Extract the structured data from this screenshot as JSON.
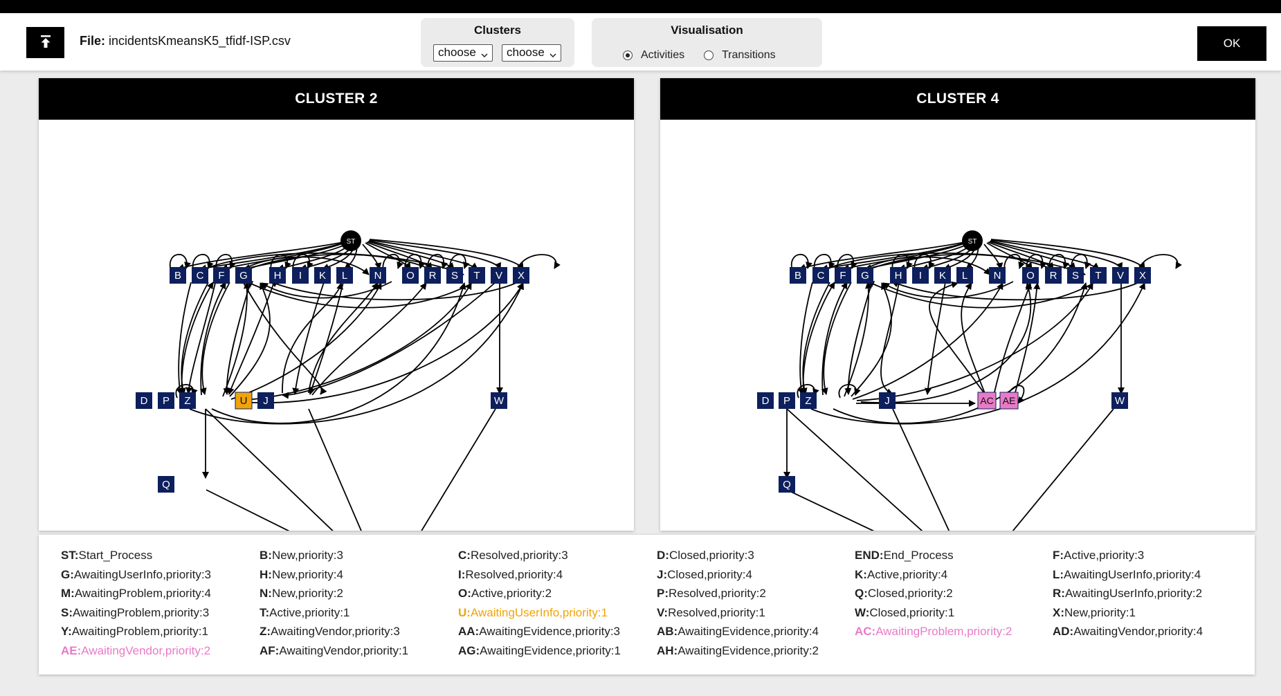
{
  "header": {
    "file_label": "File:",
    "file_name": "incidentsKmeansK5_tfidf-ISP.csv",
    "clusters_title": "Clusters",
    "select1": "choose",
    "select2": "choose",
    "vis_title": "Visualisation",
    "radio_activities": "Activities",
    "radio_transitions": "Transitions",
    "ok_label": "OK",
    "selected_visualisation": "Activities"
  },
  "clusters": [
    {
      "title": "CLUSTER 2",
      "nodes": [
        "ST",
        "B",
        "C",
        "F",
        "G",
        "H",
        "I",
        "K",
        "L",
        "N",
        "O",
        "R",
        "S",
        "T",
        "V",
        "X",
        "D",
        "P",
        "Z",
        "U",
        "J",
        "W",
        "Q",
        "END"
      ],
      "highlight": {
        "U": "#f0a30a"
      }
    },
    {
      "title": "CLUSTER 4",
      "nodes": [
        "ST",
        "B",
        "C",
        "F",
        "G",
        "H",
        "I",
        "K",
        "L",
        "N",
        "O",
        "R",
        "S",
        "T",
        "V",
        "X",
        "D",
        "P",
        "Z",
        "J",
        "AC",
        "AE",
        "W",
        "Q",
        "END"
      ],
      "highlight": {
        "AC": "#e87ac6",
        "AE": "#e87ac6"
      }
    }
  ],
  "colors": {
    "node": "#0d1f5c",
    "orange": "#f0a30a",
    "pink": "#e87ac6",
    "black": "#000000"
  },
  "legend": [
    [
      {
        "key": "ST:",
        "text": "Start_Process"
      },
      {
        "key": "G:",
        "text": "AwaitingUserInfo,priority:3"
      },
      {
        "key": "M:",
        "text": "AwaitingProblem,priority:4"
      },
      {
        "key": "S:",
        "text": "AwaitingProblem,priority:3"
      },
      {
        "key": "Y:",
        "text": "AwaitingProblem,priority:1"
      },
      {
        "key": "AE:",
        "text": "AwaitingVendor,priority:2",
        "color": "#e87ac6"
      }
    ],
    [
      {
        "key": "B:",
        "text": "New,priority:3"
      },
      {
        "key": "H:",
        "text": "New,priority:4"
      },
      {
        "key": "N:",
        "text": "New,priority:2"
      },
      {
        "key": "T:",
        "text": "Active,priority:1"
      },
      {
        "key": "Z:",
        "text": "AwaitingVendor,priority:3"
      },
      {
        "key": "AF:",
        "text": "AwaitingVendor,priority:1"
      }
    ],
    [
      {
        "key": "C:",
        "text": "Resolved,priority:3"
      },
      {
        "key": "I:",
        "text": "Resolved,priority:4"
      },
      {
        "key": "O:",
        "text": "Active,priority:2"
      },
      {
        "key": "U:",
        "text": "AwaitingUserInfo,priority:1",
        "color": "#f0a30a"
      },
      {
        "key": "AA:",
        "text": "AwaitingEvidence,priority:3"
      },
      {
        "key": "AG:",
        "text": "AwaitingEvidence,priority:1"
      }
    ],
    [
      {
        "key": "D:",
        "text": "Closed,priority:3"
      },
      {
        "key": "J:",
        "text": "Closed,priority:4"
      },
      {
        "key": "P:",
        "text": "Resolved,priority:2"
      },
      {
        "key": "V:",
        "text": "Resolved,priority:1"
      },
      {
        "key": "AB:",
        "text": "AwaitingEvidence,priority:4"
      },
      {
        "key": "AH:",
        "text": "AwaitingEvidence,priority:2"
      }
    ],
    [
      {
        "key": "END:",
        "text": "End_Process"
      },
      {
        "key": "K:",
        "text": "Active,priority:4"
      },
      {
        "key": "Q:",
        "text": "Closed,priority:2"
      },
      {
        "key": "W:",
        "text": "Closed,priority:1"
      },
      {
        "key": "AC:",
        "text": "AwaitingProblem,priority:2",
        "color": "#e87ac6"
      }
    ],
    [
      {
        "key": "F:",
        "text": "Active,priority:3"
      },
      {
        "key": "L:",
        "text": "AwaitingUserInfo,priority:4"
      },
      {
        "key": "R:",
        "text": "AwaitingUserInfo,priority:2"
      },
      {
        "key": "X:",
        "text": "New,priority:1"
      },
      {
        "key": "AD:",
        "text": "AwaitingVendor,priority:4"
      }
    ]
  ]
}
